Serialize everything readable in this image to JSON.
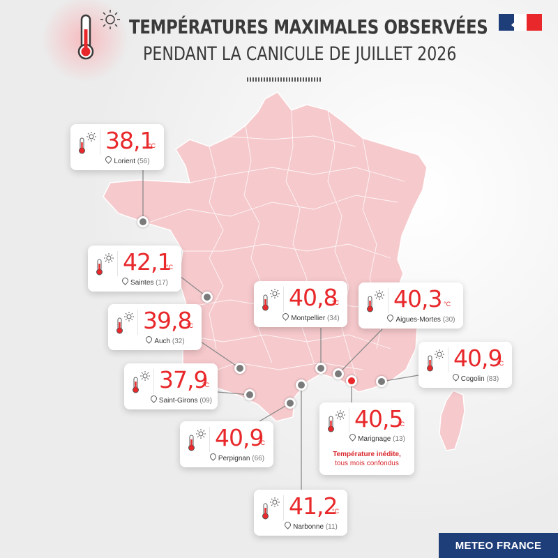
{
  "title": {
    "line1": "TEMPÉRATURES MAXIMALES OBSERVÉES",
    "line2": "PENDANT LA CANICULE DE JUILLET 2026"
  },
  "unit": "°C",
  "colors": {
    "accent": "#e8282b",
    "map_fill": "#f6c9cc",
    "brand_blue": "#1e3e7a"
  },
  "stations": [
    {
      "value": "38,1",
      "name": "Lorient",
      "dept": "(56)"
    },
    {
      "value": "42,1",
      "name": "Saintes",
      "dept": "(17)"
    },
    {
      "value": "39,8",
      "name": "Auch",
      "dept": "(32)"
    },
    {
      "value": "37,9",
      "name": "Saint-Girons",
      "dept": "(09)"
    },
    {
      "value": "40,9",
      "name": "Perpignan",
      "dept": "(66)"
    },
    {
      "value": "41,2",
      "name": "Narbonne",
      "dept": "(11)"
    },
    {
      "value": "40,8",
      "name": "Montpellier",
      "dept": "(34)"
    },
    {
      "value": "40,3",
      "name": "Aigues-Mortes",
      "dept": "(30)"
    },
    {
      "value": "40,5",
      "name": "Marignage",
      "dept": "(13)",
      "note_line1": "Température inédite,",
      "note_line2": "tous mois confondus"
    },
    {
      "value": "40,9",
      "name": "Cogolin",
      "dept": "(83)"
    }
  ],
  "footer": {
    "logo_text": "METEO FRANCE"
  }
}
